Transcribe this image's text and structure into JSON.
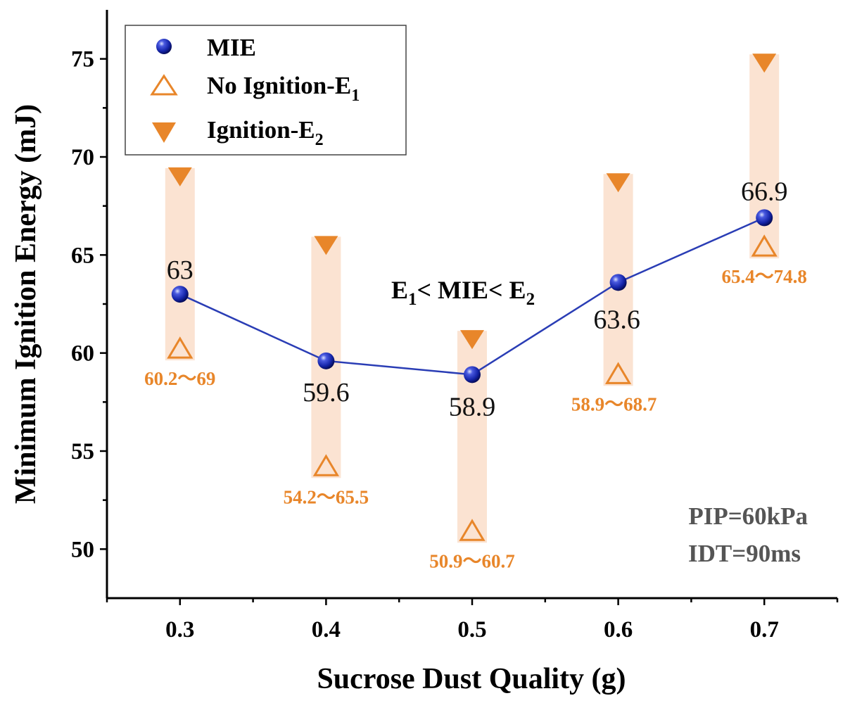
{
  "chart_data": {
    "type": "line",
    "xlabel": "Sucrose Dust Quality (g)",
    "ylabel": "Minimum Ignition Energy (mJ)",
    "x": [
      0.3,
      0.4,
      0.5,
      0.6,
      0.7
    ],
    "x_tick_labels": [
      "0.3",
      "0.4",
      "0.5",
      "0.6",
      "0.7"
    ],
    "xlim": [
      0.25,
      0.75
    ],
    "ylim": [
      47.5,
      77.5
    ],
    "y_ticks": [
      50,
      55,
      60,
      65,
      70,
      75
    ],
    "y_tick_labels": [
      "50",
      "55",
      "60",
      "65",
      "70",
      "75"
    ],
    "series": [
      {
        "name": "MIE",
        "marker": "sphere",
        "values": [
          63,
          59.6,
          58.9,
          63.6,
          66.9
        ],
        "labels": [
          "63",
          "59.6",
          "58.9",
          "63.6",
          "66.9"
        ]
      },
      {
        "name": "No Ignition-E",
        "subscript": "1",
        "marker": "open-triangle-up",
        "values": [
          60.2,
          54.2,
          50.9,
          58.9,
          65.4
        ]
      },
      {
        "name": "Ignition-E",
        "subscript": "2",
        "marker": "filled-triangle-down",
        "values": [
          69,
          65.5,
          60.7,
          68.7,
          74.8
        ]
      }
    ],
    "range_labels": [
      "60.2～69",
      "54.2～65.5",
      "50.9～60.7",
      "58.9～68.7",
      "65.4～74.8"
    ],
    "annotation": {
      "e1": "E",
      "sub1": "1",
      "mid": "< MIE< E",
      "sub2": "2"
    },
    "conditions": [
      "PIP=60kPa",
      "IDT=90ms"
    ],
    "legend": {
      "position": "top-left"
    },
    "colors": {
      "mie": "#1f2fb0",
      "line": "#2a3db5",
      "triangle": "#e8862a",
      "band": "#fbe3d2"
    }
  }
}
